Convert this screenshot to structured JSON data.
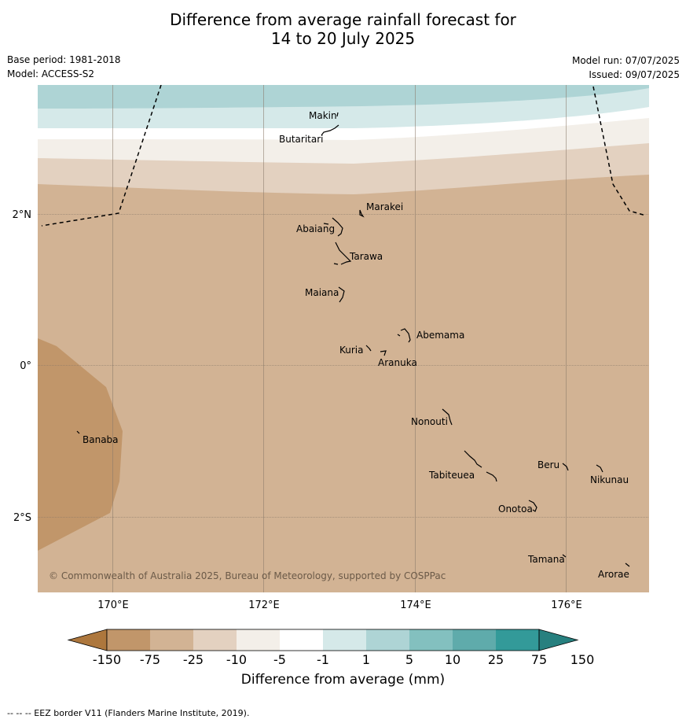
{
  "title_line1": "Difference from average rainfall forecast for",
  "title_line2": "14 to 20 July 2025",
  "base_period": "Base period: 1981-2018",
  "model": "Model: ACCESS-S2",
  "model_run": "Model run: 07/07/2025",
  "issued": "Issued: 09/07/2025",
  "copyright": "© Commonwealth of Australia 2025, Bureau of Meteorology, supported by COSPPac",
  "lat_labels": [
    "2°N",
    "0°",
    "2°S"
  ],
  "lon_labels": [
    "170°E",
    "172°E",
    "174°E",
    "176°E"
  ],
  "islands": [
    "Makin",
    "Butaritari",
    "Marakei",
    "Abaiang",
    "Tarawa",
    "Maiana",
    "Abemama",
    "Kuria",
    "Aranuka",
    "Banaba",
    "Nonouti",
    "Beru",
    "Nikunau",
    "Tabiteuea",
    "Onotoa",
    "Tamana",
    "Arorae"
  ],
  "colorbar": {
    "ticks": [
      "-150",
      "-75",
      "-25",
      "-10",
      "-5",
      "-1",
      "1",
      "5",
      "10",
      "25",
      "75",
      "150"
    ],
    "colors": [
      "#ad773d",
      "#c1966a",
      "#d2b394",
      "#e3d1c0",
      "#f3efe9",
      "#ffffff",
      "#d5e9e9",
      "#aed4d5",
      "#83c0bf",
      "#5fabab",
      "#339a99",
      "#27807f"
    ],
    "title": "Difference from average (mm)"
  },
  "legend_footer": "--  --  -- EEZ border V11 (Flanders Marine Institute, 2019)."
}
